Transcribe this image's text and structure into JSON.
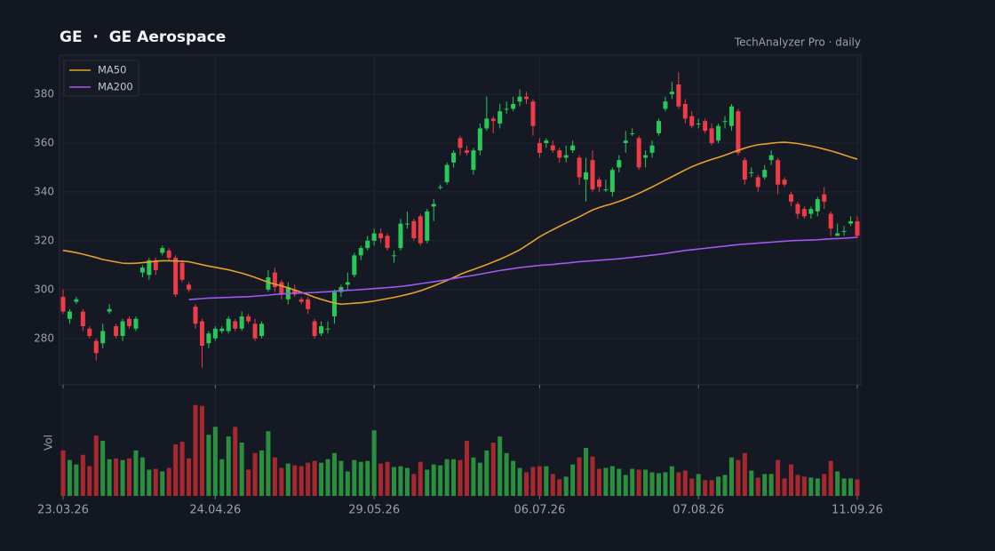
{
  "chart_data": {
    "type": "candlestick",
    "title": "GE  ·  GE Aerospace",
    "subtitle": "TechAnalyzer Pro · daily",
    "volume_label": "Vol",
    "categories": [
      "23.03.26",
      null,
      null,
      null,
      null,
      null,
      null,
      null,
      null,
      null,
      null,
      null,
      null,
      null,
      null,
      null,
      null,
      null,
      null,
      null,
      null,
      null,
      null,
      "24.04.26",
      null,
      null,
      null,
      null,
      null,
      null,
      null,
      null,
      null,
      null,
      null,
      null,
      null,
      null,
      null,
      null,
      null,
      null,
      null,
      null,
      null,
      null,
      null,
      "29.05.26",
      null,
      null,
      null,
      null,
      null,
      null,
      null,
      null,
      null,
      null,
      null,
      null,
      null,
      null,
      null,
      null,
      null,
      null,
      null,
      null,
      null,
      null,
      null,
      null,
      "06.07.26",
      null,
      null,
      null,
      null,
      null,
      null,
      null,
      null,
      null,
      null,
      null,
      null,
      null,
      null,
      null,
      null,
      null,
      null,
      null,
      null,
      null,
      null,
      null,
      "07.08.26",
      null,
      null,
      null,
      null,
      null,
      null,
      null,
      null,
      null,
      null,
      null,
      null,
      null,
      null,
      null,
      null,
      null,
      null,
      null,
      null,
      null,
      null,
      null,
      "11.09.26"
    ],
    "open": [
      297,
      288,
      295,
      291,
      284,
      279,
      278,
      291,
      285,
      281,
      288,
      284,
      307,
      306,
      312,
      315,
      316,
      313,
      311,
      302,
      293,
      287,
      278,
      280,
      283,
      283,
      287,
      284,
      289,
      286,
      281,
      300,
      307,
      303,
      296,
      300,
      296,
      296,
      287,
      282,
      284,
      289,
      299,
      302,
      306,
      314,
      317,
      320,
      323,
      322,
      314,
      317,
      327,
      328,
      330,
      320,
      334,
      342,
      344,
      352,
      362,
      357,
      349,
      357,
      366,
      370,
      368,
      374,
      374,
      377,
      379,
      377,
      360,
      360,
      359,
      357,
      354,
      357,
      354,
      345,
      353,
      345,
      341,
      340,
      350,
      360,
      364,
      362,
      354,
      356,
      364,
      374,
      380,
      384,
      376,
      371,
      368,
      369,
      366,
      361,
      369,
      367,
      373,
      353,
      348,
      346,
      346,
      353,
      353,
      345,
      339,
      335,
      333,
      331,
      332,
      339,
      331,
      322,
      324,
      327,
      328
    ],
    "high": [
      300,
      292,
      297,
      292,
      285,
      280,
      286,
      294,
      286,
      288,
      289,
      289,
      310,
      313,
      313,
      318,
      317,
      314,
      312,
      303,
      294,
      288,
      283,
      285,
      285,
      289,
      288,
      291,
      290,
      288,
      287,
      308,
      309,
      304,
      303,
      302,
      297,
      297,
      288,
      287,
      287,
      300,
      302,
      307,
      315,
      318,
      322,
      325,
      325,
      323,
      316,
      329,
      332,
      329,
      331,
      333,
      337,
      343,
      352,
      357,
      363,
      359,
      358,
      368,
      379,
      371,
      376,
      377,
      379,
      382,
      381,
      378,
      362,
      362,
      361,
      358,
      359,
      361,
      355,
      354,
      357,
      346,
      345,
      350,
      355,
      365,
      366,
      363,
      357,
      361,
      370,
      379,
      385,
      389,
      378,
      373,
      370,
      370,
      368,
      368,
      371,
      376,
      374,
      354,
      350,
      347,
      351,
      357,
      354,
      346,
      340,
      336,
      334,
      334,
      338,
      342,
      332,
      327,
      326,
      330,
      330
    ],
    "low": [
      290,
      286,
      294,
      283,
      280,
      271,
      276,
      290,
      280,
      279,
      284,
      283,
      305,
      304,
      306,
      314,
      312,
      297,
      303,
      299,
      284,
      268,
      276,
      279,
      282,
      282,
      283,
      283,
      286,
      279,
      280,
      299,
      299,
      296,
      294,
      297,
      294,
      290,
      280,
      281,
      282,
      286,
      297,
      300,
      305,
      312,
      316,
      318,
      319,
      316,
      311,
      316,
      325,
      320,
      318,
      319,
      328,
      341,
      343,
      350,
      355,
      355,
      347,
      355,
      365,
      364,
      366,
      372,
      373,
      375,
      376,
      363,
      354,
      358,
      356,
      352,
      352,
      356,
      343,
      336,
      340,
      340,
      340,
      338,
      348,
      356,
      363,
      349,
      350,
      354,
      363,
      373,
      378,
      374,
      368,
      366,
      366,
      364,
      359,
      360,
      366,
      365,
      355,
      343,
      346,
      340,
      345,
      351,
      339,
      342,
      334,
      329,
      329,
      329,
      330,
      333,
      322,
      322,
      322,
      326,
      321
    ],
    "close": [
      291,
      291,
      296,
      285,
      281,
      274,
      283,
      292,
      281,
      287,
      285,
      288,
      309,
      312,
      308,
      317,
      313,
      298,
      304,
      300,
      286,
      277,
      282,
      284,
      284,
      288,
      284,
      289,
      287,
      280,
      286,
      305,
      301,
      298,
      301,
      298,
      295,
      292,
      281,
      285,
      284,
      299,
      301,
      303,
      314,
      317,
      320,
      323,
      321,
      317,
      314,
      327,
      327,
      321,
      319,
      332,
      335,
      342,
      351,
      356,
      358,
      356,
      357,
      366,
      370,
      369,
      373,
      374,
      376,
      379,
      378,
      367,
      356,
      361,
      357,
      354,
      355,
      359,
      346,
      348,
      341,
      342,
      341,
      349,
      353,
      361,
      364,
      350,
      355,
      359,
      369,
      377,
      381,
      375,
      370,
      367,
      368,
      365,
      360,
      367,
      369,
      375,
      356,
      345,
      348,
      342,
      349,
      355,
      343,
      343,
      336,
      331,
      330,
      333,
      337,
      336,
      325,
      323,
      324,
      328,
      322
    ],
    "volume": [
      5.2,
      4.1,
      3.6,
      4.7,
      3.4,
      6.9,
      6.3,
      4.2,
      4.3,
      4.1,
      4.3,
      5.2,
      4.4,
      3.0,
      3.1,
      2.8,
      3.2,
      5.9,
      6.2,
      4.3,
      10.4,
      10.3,
      7.0,
      7.9,
      4.2,
      6.8,
      7.9,
      6.1,
      3.0,
      4.9,
      5.2,
      7.4,
      4.4,
      3.2,
      3.7,
      3.5,
      3.4,
      3.8,
      4.0,
      3.8,
      4.2,
      4.9,
      4.0,
      2.8,
      4.1,
      3.9,
      4.0,
      7.5,
      3.7,
      3.9,
      3.3,
      3.4,
      3.2,
      2.5,
      3.9,
      3.0,
      3.6,
      3.5,
      4.2,
      4.2,
      4.1,
      6.3,
      4.4,
      3.8,
      5.2,
      6.1,
      6.8,
      4.9,
      4.0,
      3.2,
      2.7,
      3.3,
      3.4,
      3.4,
      2.5,
      1.9,
      2.2,
      3.6,
      4.4,
      5.5,
      4.5,
      3.1,
      3.2,
      3.4,
      3.1,
      2.4,
      3.1,
      3.0,
      3.0,
      2.7,
      2.6,
      2.7,
      3.4,
      2.7,
      2.9,
      2.0,
      2.5,
      1.8,
      1.8,
      2.2,
      2.4,
      4.4,
      4.1,
      4.9,
      2.9,
      2.1,
      2.5,
      2.5,
      4.1,
      2.0,
      3.6,
      2.4,
      2.2,
      2.1,
      2.0,
      2.5,
      4.0,
      2.8,
      2.0,
      2.0,
      1.9
    ],
    "series": [
      {
        "name": "MA50",
        "color": "#e8a02a",
        "values": [
          316,
          315.6,
          315.1,
          314.5,
          313.8,
          313.1,
          312.3,
          311.8,
          311.3,
          310.8,
          310.7,
          310.8,
          311.0,
          311.3,
          311.6,
          311.8,
          311.8,
          311.7,
          311.6,
          311.4,
          310.8,
          310.2,
          309.6,
          309.1,
          308.6,
          308.1,
          307.4,
          306.7,
          305.9,
          305.0,
          304.0,
          303.0,
          302.2,
          301.5,
          300.7,
          299.8,
          298.9,
          297.9,
          296.9,
          296.0,
          295.2,
          294.5,
          294.0,
          294.2,
          294.4,
          294.6,
          294.9,
          295.3,
          295.8,
          296.3,
          296.8,
          297.4,
          298.0,
          298.7,
          299.5,
          300.5,
          301.5,
          302.6,
          303.7,
          304.9,
          306.2,
          307.3,
          308.2,
          309.2,
          310.2,
          311.3,
          312.4,
          313.6,
          314.9,
          316.3,
          318.0,
          319.8,
          321.6,
          323.1,
          324.5,
          325.9,
          327.2,
          328.5,
          329.8,
          331.2,
          332.6,
          333.6,
          334.4,
          335.2,
          336.1,
          337.1,
          338.2,
          339.4,
          340.7,
          342.0,
          343.4,
          344.8,
          346.2,
          347.6,
          349.0,
          350.3,
          351.4,
          352.4,
          353.3,
          354.1,
          355.0,
          356.0,
          357.0,
          357.9,
          358.7,
          359.3,
          359.6,
          359.9,
          360.2,
          360.3,
          360.1,
          359.8,
          359.3,
          358.8,
          358.2,
          357.5,
          356.8,
          356.0,
          355.1,
          354.2,
          353.4
        ]
      },
      {
        "name": "MA200",
        "color": "#a259f0",
        "values": [
          null,
          null,
          null,
          null,
          null,
          null,
          null,
          null,
          null,
          null,
          null,
          null,
          null,
          null,
          null,
          null,
          null,
          null,
          null,
          295.9,
          296.1,
          296.3,
          296.5,
          296.6,
          296.7,
          296.8,
          296.9,
          297.0,
          297.1,
          297.3,
          297.5,
          297.7,
          298.0,
          298.2,
          298.4,
          298.5,
          298.6,
          298.7,
          298.8,
          299.0,
          299.1,
          299.3,
          299.5,
          299.7,
          299.8,
          300.0,
          300.2,
          300.4,
          300.6,
          300.8,
          301.0,
          301.3,
          301.6,
          302.0,
          302.4,
          302.8,
          303.2,
          303.6,
          304.0,
          304.5,
          305.0,
          305.4,
          305.8,
          306.3,
          306.8,
          307.3,
          307.8,
          308.2,
          308.6,
          309.0,
          309.3,
          309.6,
          309.9,
          310.1,
          310.3,
          310.6,
          310.8,
          311.1,
          311.4,
          311.6,
          311.8,
          312.0,
          312.2,
          312.4,
          312.6,
          312.9,
          313.2,
          313.5,
          313.8,
          314.1,
          314.4,
          314.8,
          315.2,
          315.6,
          316.0,
          316.3,
          316.6,
          316.9,
          317.2,
          317.5,
          317.8,
          318.1,
          318.4,
          318.6,
          318.8,
          319.0,
          319.2,
          319.4,
          319.6,
          319.8,
          320.0,
          320.1,
          320.2,
          320.3,
          320.4,
          320.6,
          320.8,
          320.9,
          321.0,
          321.2,
          321.4
        ]
      }
    ],
    "up_color": "#26c95a",
    "down_color": "#ee3b48",
    "volume_up_color": "#2a8f3f",
    "volume_down_color": "#a8282f",
    "ylim": [
      261,
      396
    ],
    "yticks": [
      280,
      300,
      320,
      340,
      360,
      380
    ],
    "volume_ylim": [
      0,
      12
    ],
    "grid": true,
    "legend": "upper left"
  }
}
